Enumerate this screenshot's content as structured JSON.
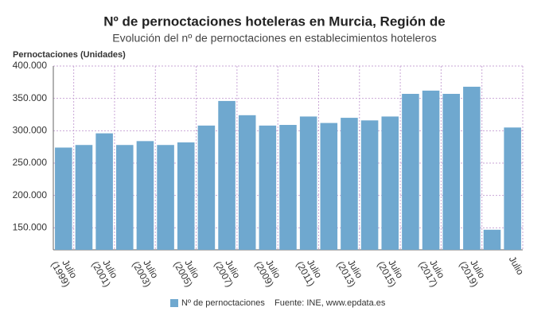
{
  "chart_data": {
    "type": "bar",
    "title": "Nº de pernoctaciones hoteleras en Murcia, Región de",
    "subtitle": "Evolución del nº de pernoctaciones en establecimientos hoteleros",
    "y_label": "Pernoctaciones (Unidades)",
    "source": "Fuente: INE, www.epdata.es",
    "categories": [
      "Julio\n(1999)",
      null,
      "Julio\n(2001)",
      null,
      "Julio\n(2003)",
      null,
      "Julio\n(2005)",
      null,
      "Julio\n(2007)",
      null,
      "Julio\n(2009)",
      null,
      "Julio\n(2011)",
      null,
      "Julio\n(2013)",
      null,
      "Julio\n(2015)",
      null,
      "Julio\n(2017)",
      null,
      "Julio\n(2019)",
      null,
      "Julio"
    ],
    "series": [
      {
        "name": "Nº de pernoctaciones",
        "color": "#6fa8cf",
        "values": [
          274000,
          278000,
          296000,
          278000,
          284000,
          278000,
          282000,
          308000,
          346000,
          324000,
          308000,
          309000,
          322000,
          312000,
          320000,
          316000,
          322000,
          357000,
          362000,
          357000,
          368000,
          147000,
          305000
        ]
      }
    ],
    "ylim": [
      116000,
      400000
    ],
    "yticks": [
      {
        "value": 150000,
        "label": "150.000"
      },
      {
        "value": 200000,
        "label": "200.000"
      },
      {
        "value": 250000,
        "label": "250.000"
      },
      {
        "value": 300000,
        "label": "300.000"
      },
      {
        "value": 350000,
        "label": "350.000"
      },
      {
        "value": 400000,
        "label": "400.000"
      }
    ],
    "grid": true
  }
}
